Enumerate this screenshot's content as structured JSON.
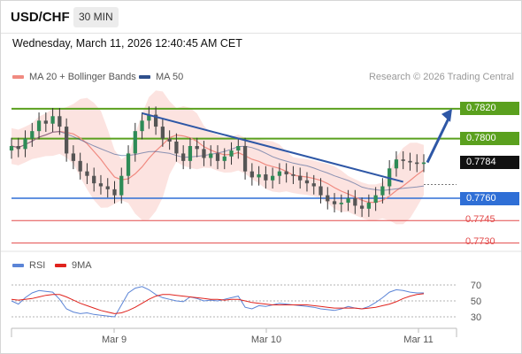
{
  "header": {
    "symbol": "USD/CHF",
    "interval": "30 MIN",
    "timestamp": "Wednesday, March 11, 2026 12:40:45 AM CET"
  },
  "legend": {
    "ma20_label": "MA 20 + Bollinger Bands",
    "ma50_label": "MA 50",
    "ma20_color": "#f08a80",
    "ma50_color": "#2e4f8c",
    "credit": "Research © 2026 Trading Central",
    "rsi_label": "RSI",
    "rsi_ma_label": "9MA",
    "rsi_color": "#5b84d6",
    "rsi_ma_color": "#e0231d"
  },
  "levels": {
    "resistance_2": "0.7820",
    "resistance_1": "0.7800",
    "last_price": "0.7784",
    "pivot": "0.7760",
    "support_1": "0.7745",
    "support_2": "0.7730",
    "resistance_color": "#5aa01e",
    "pivot_color": "#2f6fd6",
    "support_color": "#e24a4a",
    "last_color": "#111111"
  },
  "chart_data": {
    "type": "line",
    "x": [
      "Mar 9",
      "Mar 10",
      "Mar 11"
    ],
    "ylim": [
      0.7725,
      0.783
    ],
    "price_series": {
      "name": "USD/CHF",
      "values": [
        0.7795,
        0.7793,
        0.78,
        0.7805,
        0.7812,
        0.781,
        0.7815,
        0.7808,
        0.779,
        0.7785,
        0.7778,
        0.7775,
        0.777,
        0.7768,
        0.7766,
        0.7762,
        0.7775,
        0.779,
        0.7805,
        0.7812,
        0.7816,
        0.7808,
        0.78,
        0.7798,
        0.779,
        0.7785,
        0.7795,
        0.7793,
        0.7787,
        0.779,
        0.7785,
        0.7788,
        0.7792,
        0.7795,
        0.7778,
        0.7774,
        0.7776,
        0.7772,
        0.7775,
        0.7778,
        0.7776,
        0.7775,
        0.7772,
        0.777,
        0.7768,
        0.7762,
        0.7758,
        0.7756,
        0.7757,
        0.776,
        0.7755,
        0.7753,
        0.7757,
        0.7762,
        0.7768,
        0.778,
        0.7786,
        0.7785,
        0.7784,
        0.7783,
        0.7784
      ]
    },
    "projection": {
      "from": 0.7784,
      "to": 0.782
    },
    "rsi": {
      "ylim": [
        20,
        80
      ],
      "ticks": [
        30,
        50,
        70
      ],
      "values": [
        50,
        46,
        54,
        60,
        63,
        62,
        61,
        52,
        40,
        36,
        34,
        35,
        33,
        32,
        31,
        30,
        45,
        60,
        66,
        68,
        64,
        58,
        54,
        52,
        50,
        49,
        55,
        53,
        50,
        51,
        50,
        52,
        54,
        56,
        42,
        40,
        44,
        43,
        45,
        47,
        46,
        45,
        44,
        43,
        42,
        40,
        39,
        38,
        40,
        43,
        41,
        40,
        43,
        48,
        54,
        61,
        64,
        63,
        61,
        60,
        60
      ],
      "ma_values": [
        52,
        51,
        52,
        53,
        55,
        57,
        58,
        58,
        55,
        51,
        47,
        44,
        41,
        38,
        36,
        34,
        35,
        38,
        42,
        47,
        52,
        56,
        58,
        58,
        57,
        56,
        55,
        54,
        53,
        52,
        52,
        51,
        52,
        52,
        50,
        48,
        47,
        46,
        45,
        45,
        45,
        45,
        45,
        45,
        44,
        43,
        42,
        41,
        41,
        41,
        41,
        40,
        41,
        42,
        44,
        46,
        49,
        53,
        56,
        58,
        59
      ]
    }
  }
}
